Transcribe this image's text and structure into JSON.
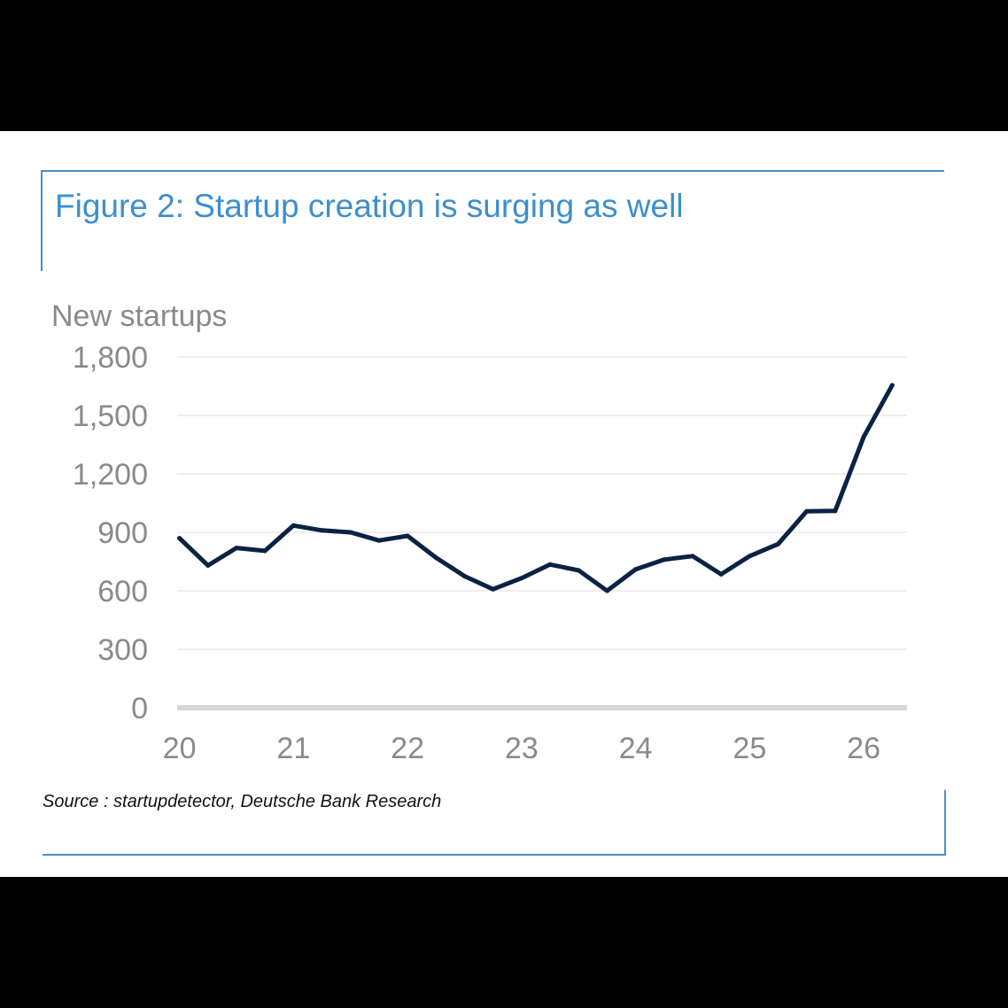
{
  "chart_data": {
    "type": "line",
    "title": "Figure 2: Startup creation is surging as well",
    "ylabel": "New startups",
    "xlabel": "",
    "ylim": [
      0,
      1800
    ],
    "yticks": [
      "0",
      "300",
      "600",
      "900",
      "1,200",
      "1,500",
      "1,800"
    ],
    "ytick_values": [
      0,
      300,
      600,
      900,
      1200,
      1500,
      1800
    ],
    "xticks": [
      "20",
      "21",
      "22",
      "23",
      "24",
      "25",
      "26"
    ],
    "xtick_values": [
      20,
      21,
      22,
      23,
      24,
      25,
      26
    ],
    "xlim": [
      19.98,
      26.38
    ],
    "grid": true,
    "series": [
      {
        "x": [
          20.0,
          20.25,
          20.5,
          20.75,
          21.0,
          21.25,
          21.5,
          21.75,
          22.0,
          22.25,
          22.5,
          22.75,
          23.0,
          23.25,
          23.5,
          23.75,
          24.0,
          24.25,
          24.5,
          24.75,
          25.0,
          25.25,
          25.5,
          25.75,
          26.0,
          26.25
        ],
        "values": [
          870,
          730,
          820,
          805,
          935,
          910,
          900,
          858,
          882,
          770,
          675,
          608,
          665,
          735,
          705,
          600,
          710,
          760,
          778,
          685,
          778,
          840,
          1008,
          1010,
          1390,
          1655
        ]
      }
    ]
  },
  "source": "Source : startupdetector, Deutsche Bank Research",
  "colors": {
    "title": "#3d8fcc",
    "frame": "#4a90c8",
    "line": "#0b2244",
    "axis_text": "#8a8a8a",
    "grid": "#e3e3e3",
    "baseline": "#d6d6d6"
  }
}
